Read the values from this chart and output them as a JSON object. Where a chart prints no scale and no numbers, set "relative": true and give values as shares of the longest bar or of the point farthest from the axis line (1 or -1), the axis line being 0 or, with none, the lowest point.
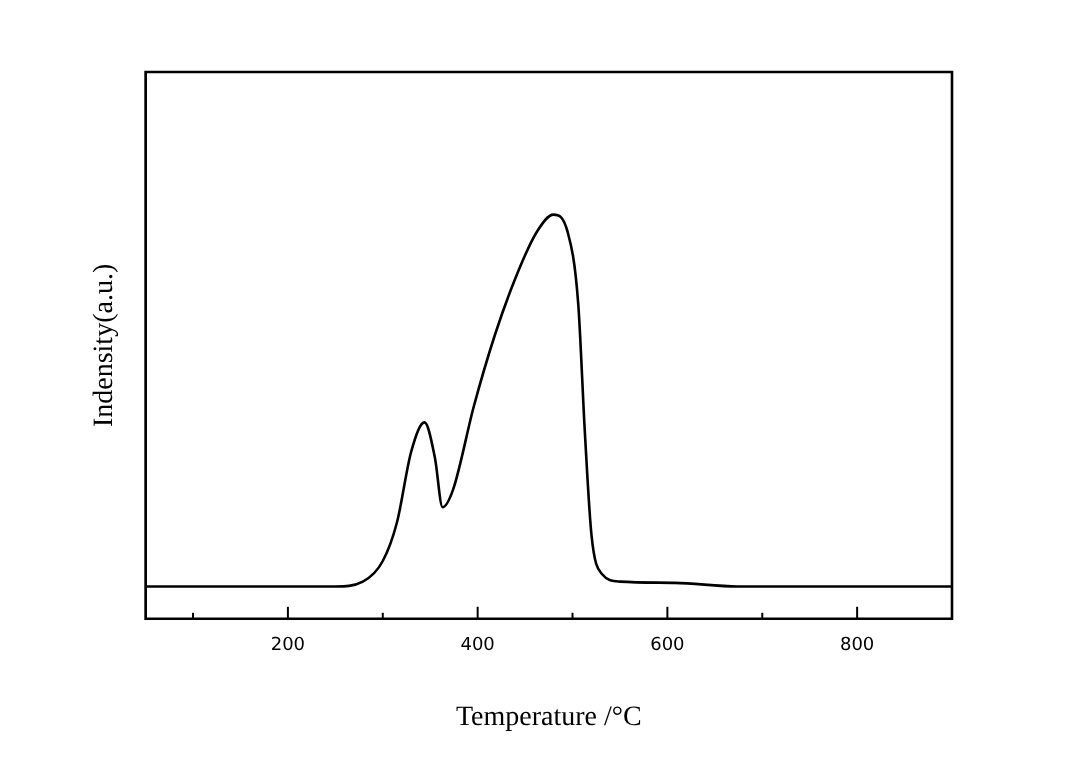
{
  "chart_data": {
    "type": "line",
    "xlabel": "Temperature /°C",
    "ylabel": "Indensity(a.u.)",
    "relative": true,
    "tick_labels": "x",
    "xlim": [
      50,
      900
    ],
    "xticks": [
      {
        "value": 100,
        "label": null
      },
      200,
      {
        "value": 300,
        "label": null
      },
      400,
      {
        "value": 500,
        "label": null
      },
      600,
      {
        "value": 700,
        "label": null
      },
      800
    ],
    "series": [
      {
        "color": "#000000",
        "x": [
          50,
          150,
          250,
          279,
          300,
          315,
          330,
          344,
          355,
          363,
          374,
          396,
          418,
          440,
          462,
          480,
          495,
          506,
          513,
          520,
          531,
          550,
          608,
          674,
          800,
          900
        ],
        "values": [
          0.08,
          0.08,
          0.08,
          0.092,
          0.143,
          0.239,
          0.414,
          0.486,
          0.398,
          0.276,
          0.319,
          0.526,
          0.701,
          0.844,
          0.956,
          1,
          0.956,
          0.78,
          0.462,
          0.207,
          0.111,
          0.092,
          0.089,
          0.08,
          0.08,
          0.08
        ]
      }
    ]
  }
}
